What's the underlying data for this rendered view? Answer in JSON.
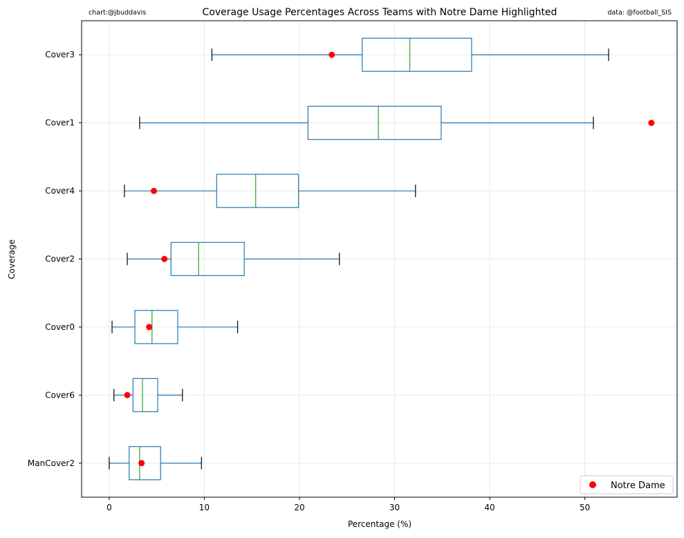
{
  "chart_data": {
    "type": "boxplot",
    "title": "Coverage Usage Percentages Across Teams with Notre Dame Highlighted",
    "left_note": "chart:@jbuddavis",
    "right_note": "data: @football_SIS",
    "xlabel": "Percentage (%)",
    "ylabel": "Coverage",
    "xlim": [
      -2.9,
      59.7
    ],
    "xticks": [
      0,
      10,
      20,
      30,
      40,
      50
    ],
    "grid": true,
    "legend": {
      "label": "Notre Dame",
      "placement": "bottom-right"
    },
    "colors": {
      "box": "#1f77b4",
      "median": "#2ca02c",
      "whisker_cap": "#000000",
      "highlight": "#ff0000"
    },
    "categories": [
      "Cover3",
      "Cover1",
      "Cover4",
      "Cover2",
      "Cover0",
      "Cover6",
      "ManCover2"
    ],
    "boxes": [
      {
        "whislo": 10.8,
        "q1": 26.6,
        "med": 31.6,
        "q3": 38.1,
        "whishi": 52.5,
        "notre_dame": 23.4
      },
      {
        "whislo": 3.2,
        "q1": 20.9,
        "med": 28.3,
        "q3": 34.9,
        "whishi": 50.9,
        "notre_dame": 57.0
      },
      {
        "whislo": 1.6,
        "q1": 11.3,
        "med": 15.4,
        "q3": 19.9,
        "whishi": 32.2,
        "notre_dame": 4.7
      },
      {
        "whislo": 1.9,
        "q1": 6.5,
        "med": 9.4,
        "q3": 14.2,
        "whishi": 24.2,
        "notre_dame": 5.8
      },
      {
        "whislo": 0.3,
        "q1": 2.7,
        "med": 4.5,
        "q3": 7.2,
        "whishi": 13.5,
        "notre_dame": 4.2
      },
      {
        "whislo": 0.5,
        "q1": 2.5,
        "med": 3.5,
        "q3": 5.1,
        "whishi": 7.7,
        "notre_dame": 1.9
      },
      {
        "whislo": 0.0,
        "q1": 2.1,
        "med": 3.2,
        "q3": 5.4,
        "whishi": 9.7,
        "notre_dame": 3.4
      }
    ]
  }
}
